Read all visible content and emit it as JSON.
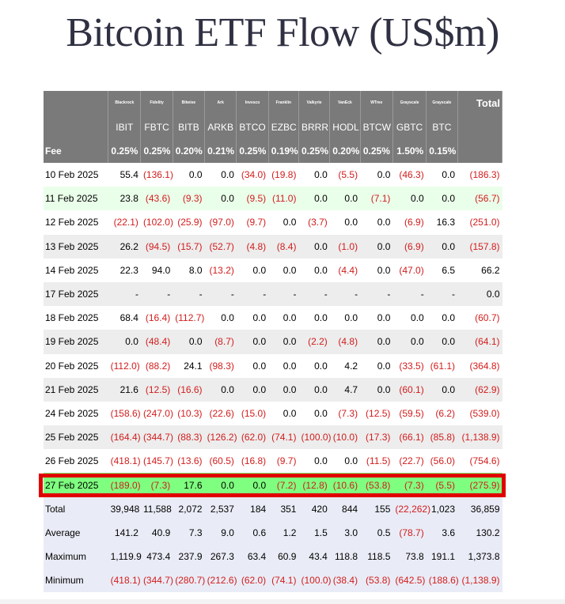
{
  "title": "Bitcoin ETF Flow (US$m)",
  "header": {
    "issuers": [
      "Blackrock",
      "Fidelity",
      "Bitwise",
      "Ark",
      "Invesco",
      "Franklin",
      "Valkyrie",
      "VanEck",
      "WTree",
      "Grayscale",
      "Grayscale"
    ],
    "total_label": "Total",
    "tickers": [
      "IBIT",
      "FBTC",
      "BITB",
      "ARKB",
      "BTCO",
      "EZBC",
      "BRRR",
      "HODL",
      "BTCW",
      "GBTC",
      "BTC"
    ],
    "fee_label": "Fee",
    "fees": [
      "0.25%",
      "0.25%",
      "0.20%",
      "0.21%",
      "0.25%",
      "0.19%",
      "0.25%",
      "0.20%",
      "0.25%",
      "1.50%",
      "0.15%"
    ]
  },
  "rows": [
    {
      "date": "10 Feb 2025",
      "values": [
        "55.4",
        "(136.1)",
        "0.0",
        "0.0",
        "(34.0)",
        "(19.8)",
        "0.0",
        "(5.5)",
        "0.0",
        "(46.3)",
        "0.0"
      ],
      "total": "(186.3)"
    },
    {
      "date": "11 Feb 2025",
      "values": [
        "23.8",
        "(43.6)",
        "(9.3)",
        "0.0",
        "(9.5)",
        "(11.0)",
        "0.0",
        "0.0",
        "(7.1)",
        "0.0",
        "0.0"
      ],
      "total": "(56.7)"
    },
    {
      "date": "12 Feb 2025",
      "values": [
        "(22.1)",
        "(102.0)",
        "(25.9)",
        "(97.0)",
        "(9.7)",
        "0.0",
        "(3.7)",
        "0.0",
        "0.0",
        "(6.9)",
        "16.3"
      ],
      "total": "(251.0)"
    },
    {
      "date": "13 Feb 2025",
      "values": [
        "26.2",
        "(94.5)",
        "(15.7)",
        "(52.7)",
        "(4.8)",
        "(8.4)",
        "0.0",
        "(1.0)",
        "0.0",
        "(6.9)",
        "0.0"
      ],
      "total": "(157.8)"
    },
    {
      "date": "14 Feb 2025",
      "values": [
        "22.3",
        "94.0",
        "8.0",
        "(13.2)",
        "0.0",
        "0.0",
        "0.0",
        "(4.4)",
        "0.0",
        "(47.0)",
        "6.5"
      ],
      "total": "66.2"
    },
    {
      "date": "17 Feb 2025",
      "values": [
        "-",
        "-",
        "-",
        "-",
        "-",
        "-",
        "-",
        "-",
        "-",
        "-",
        "-"
      ],
      "total": "0.0"
    },
    {
      "date": "18 Feb 2025",
      "values": [
        "68.4",
        "(16.4)",
        "(112.7)",
        "0.0",
        "0.0",
        "0.0",
        "0.0",
        "0.0",
        "0.0",
        "0.0",
        "0.0"
      ],
      "total": "(60.7)"
    },
    {
      "date": "19 Feb 2025",
      "values": [
        "0.0",
        "(48.4)",
        "0.0",
        "(8.7)",
        "0.0",
        "0.0",
        "(2.2)",
        "(4.8)",
        "0.0",
        "0.0",
        "0.0"
      ],
      "total": "(64.1)"
    },
    {
      "date": "20 Feb 2025",
      "values": [
        "(112.0)",
        "(88.2)",
        "24.1",
        "(98.3)",
        "0.0",
        "0.0",
        "0.0",
        "4.2",
        "0.0",
        "(33.5)",
        "(61.1)"
      ],
      "total": "(364.8)"
    },
    {
      "date": "21 Feb 2025",
      "values": [
        "21.6",
        "(12.5)",
        "(16.6)",
        "0.0",
        "0.0",
        "0.0",
        "0.0",
        "4.7",
        "0.0",
        "(60.1)",
        "0.0"
      ],
      "total": "(62.9)"
    },
    {
      "date": "24 Feb 2025",
      "values": [
        "(158.6)",
        "(247.0)",
        "(10.3)",
        "(22.6)",
        "(15.0)",
        "0.0",
        "0.0",
        "(7.3)",
        "(12.5)",
        "(59.5)",
        "(6.2)"
      ],
      "total": "(539.0)"
    },
    {
      "date": "25 Feb 2025",
      "values": [
        "(164.4)",
        "(344.7)",
        "(88.3)",
        "(126.2)",
        "(62.0)",
        "(74.1)",
        "(100.0)",
        "(10.0)",
        "(17.3)",
        "(66.1)",
        "(85.8)"
      ],
      "total": "(1,138.9)"
    },
    {
      "date": "26 Feb 2025",
      "values": [
        "(418.1)",
        "(145.7)",
        "(13.6)",
        "(60.5)",
        "(16.8)",
        "(9.7)",
        "0.0",
        "0.0",
        "(11.5)",
        "(22.7)",
        "(56.0)"
      ],
      "total": "(754.6)"
    },
    {
      "date": "27 Feb 2025",
      "values": [
        "(189.0)",
        "(7.3)",
        "17.6",
        "0.0",
        "0.0",
        "(7.2)",
        "(12.8)",
        "(10.6)",
        "(53.8)",
        "(7.3)",
        "(5.5)"
      ],
      "total": "(275.9)",
      "highlight": true
    }
  ],
  "stats": [
    {
      "label": "Total",
      "values": [
        "39,948",
        "11,588",
        "2,072",
        "2,537",
        "184",
        "351",
        "420",
        "844",
        "155",
        "(22,262)",
        "1,023"
      ],
      "total": "36,859"
    },
    {
      "label": "Average",
      "values": [
        "141.2",
        "40.9",
        "7.3",
        "9.0",
        "0.6",
        "1.2",
        "1.5",
        "3.0",
        "0.5",
        "(78.7)",
        "3.6"
      ],
      "total": "130.2"
    },
    {
      "label": "Maximum",
      "values": [
        "1,119.9",
        "473.4",
        "237.9",
        "267.3",
        "63.4",
        "60.9",
        "43.4",
        "118.8",
        "118.5",
        "73.8",
        "191.1"
      ],
      "total": "1,373.8"
    },
    {
      "label": "Minimum",
      "values": [
        "(418.1)",
        "(344.7)",
        "(280.7)",
        "(212.6)",
        "(62.0)",
        "(74.1)",
        "(100.0)",
        "(38.4)",
        "(53.8)",
        "(642.5)",
        "(188.6)"
      ],
      "total": "(1,138.9)"
    }
  ],
  "colors": {
    "negative": "#d21c1c",
    "header_bg": "#7a7a7a",
    "highlight_fill": "#7fff7f",
    "highlight_border": "#e00000"
  }
}
